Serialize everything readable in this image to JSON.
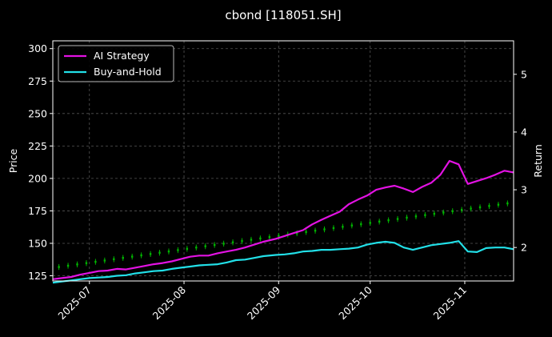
{
  "chart_data": {
    "type": "line",
    "title": "cbond [118051.SH]",
    "ylabel": "Price",
    "y2label": "Return",
    "ylim": [
      121,
      306
    ],
    "y2lim": [
      1.42,
      5.58
    ],
    "yticks": [
      125,
      150,
      175,
      200,
      225,
      250,
      275,
      300
    ],
    "y2ticks": [
      2,
      3,
      4,
      5
    ],
    "xlim": [
      "2025-06-19",
      "2025-11-17"
    ],
    "xticks": [
      {
        "date": "2025-07-01",
        "label": "2025-07"
      },
      {
        "date": "2025-08-01",
        "label": "2025-08"
      },
      {
        "date": "2025-09-01",
        "label": "2025-09"
      },
      {
        "date": "2025-10-01",
        "label": "2025-10"
      },
      {
        "date": "2025-11-01",
        "label": "2025-11"
      }
    ],
    "grid": true,
    "legend": "top-left",
    "colors": {
      "ai": "#e312e3",
      "bh": "#22e0e8",
      "up": "#00b400",
      "down": "#e01010",
      "grid": "#555555"
    },
    "series": [
      {
        "name": "AI Strategy",
        "axis": "y2",
        "points": [
          [
            "2025-06-19",
            1.45
          ],
          [
            "2025-06-22",
            1.47
          ],
          [
            "2025-06-25",
            1.49
          ],
          [
            "2025-06-28",
            1.53
          ],
          [
            "2025-07-01",
            1.56
          ],
          [
            "2025-07-04",
            1.59
          ],
          [
            "2025-07-07",
            1.6
          ],
          [
            "2025-07-10",
            1.63
          ],
          [
            "2025-07-13",
            1.62
          ],
          [
            "2025-07-16",
            1.65
          ],
          [
            "2025-07-19",
            1.68
          ],
          [
            "2025-07-22",
            1.71
          ],
          [
            "2025-07-25",
            1.73
          ],
          [
            "2025-07-28",
            1.76
          ],
          [
            "2025-07-31",
            1.8
          ],
          [
            "2025-08-03",
            1.84
          ],
          [
            "2025-08-06",
            1.86
          ],
          [
            "2025-08-09",
            1.86
          ],
          [
            "2025-08-12",
            1.9
          ],
          [
            "2025-08-15",
            1.93
          ],
          [
            "2025-08-18",
            1.96
          ],
          [
            "2025-08-21",
            2.0
          ],
          [
            "2025-08-24",
            2.05
          ],
          [
            "2025-08-27",
            2.1
          ],
          [
            "2025-08-31",
            2.15
          ],
          [
            "2025-09-03",
            2.2
          ],
          [
            "2025-09-06",
            2.25
          ],
          [
            "2025-09-09",
            2.3
          ],
          [
            "2025-09-12",
            2.4
          ],
          [
            "2025-09-15",
            2.48
          ],
          [
            "2025-09-18",
            2.55
          ],
          [
            "2025-09-21",
            2.62
          ],
          [
            "2025-09-24",
            2.75
          ],
          [
            "2025-09-27",
            2.83
          ],
          [
            "2025-09-30",
            2.9
          ],
          [
            "2025-10-03",
            3.0
          ],
          [
            "2025-10-06",
            3.04
          ],
          [
            "2025-10-09",
            3.07
          ],
          [
            "2025-10-12",
            3.02
          ],
          [
            "2025-10-15",
            2.96
          ],
          [
            "2025-10-18",
            3.05
          ],
          [
            "2025-10-21",
            3.12
          ],
          [
            "2025-10-24",
            3.26
          ],
          [
            "2025-10-27",
            3.5
          ],
          [
            "2025-10-30",
            3.44
          ],
          [
            "2025-11-02",
            3.1
          ],
          [
            "2025-11-05",
            3.15
          ],
          [
            "2025-11-08",
            3.2
          ],
          [
            "2025-11-11",
            3.26
          ],
          [
            "2025-11-14",
            3.33
          ],
          [
            "2025-11-17",
            3.3
          ]
        ]
      },
      {
        "name": "Buy-and-Hold",
        "axis": "y2",
        "points": [
          [
            "2025-06-19",
            1.39
          ],
          [
            "2025-06-22",
            1.41
          ],
          [
            "2025-06-25",
            1.43
          ],
          [
            "2025-06-28",
            1.45
          ],
          [
            "2025-07-01",
            1.47
          ],
          [
            "2025-07-04",
            1.48
          ],
          [
            "2025-07-07",
            1.49
          ],
          [
            "2025-07-10",
            1.51
          ],
          [
            "2025-07-13",
            1.52
          ],
          [
            "2025-07-16",
            1.55
          ],
          [
            "2025-07-19",
            1.57
          ],
          [
            "2025-07-22",
            1.59
          ],
          [
            "2025-07-25",
            1.6
          ],
          [
            "2025-07-28",
            1.63
          ],
          [
            "2025-07-31",
            1.65
          ],
          [
            "2025-08-03",
            1.67
          ],
          [
            "2025-08-06",
            1.69
          ],
          [
            "2025-08-09",
            1.7
          ],
          [
            "2025-08-12",
            1.71
          ],
          [
            "2025-08-15",
            1.74
          ],
          [
            "2025-08-18",
            1.78
          ],
          [
            "2025-08-21",
            1.79
          ],
          [
            "2025-08-24",
            1.82
          ],
          [
            "2025-08-27",
            1.85
          ],
          [
            "2025-08-31",
            1.87
          ],
          [
            "2025-09-03",
            1.88
          ],
          [
            "2025-09-06",
            1.9
          ],
          [
            "2025-09-09",
            1.93
          ],
          [
            "2025-09-12",
            1.94
          ],
          [
            "2025-09-15",
            1.96
          ],
          [
            "2025-09-18",
            1.96
          ],
          [
            "2025-09-21",
            1.97
          ],
          [
            "2025-09-24",
            1.98
          ],
          [
            "2025-09-27",
            2.0
          ],
          [
            "2025-09-30",
            2.05
          ],
          [
            "2025-10-03",
            2.08
          ],
          [
            "2025-10-06",
            2.1
          ],
          [
            "2025-10-09",
            2.08
          ],
          [
            "2025-10-12",
            2.0
          ],
          [
            "2025-10-15",
            1.96
          ],
          [
            "2025-10-18",
            2.0
          ],
          [
            "2025-10-21",
            2.04
          ],
          [
            "2025-10-24",
            2.06
          ],
          [
            "2025-10-27",
            2.08
          ],
          [
            "2025-10-30",
            2.11
          ],
          [
            "2025-11-02",
            1.93
          ],
          [
            "2025-11-05",
            1.92
          ],
          [
            "2025-11-08",
            1.99
          ],
          [
            "2025-11-11",
            2.0
          ],
          [
            "2025-11-14",
            2.0
          ],
          [
            "2025-11-17",
            1.97
          ]
        ]
      }
    ],
    "candles": [
      [
        "2025-06-21",
        131,
        132.5,
        129.5,
        134
      ],
      [
        "2025-06-24",
        132,
        133.5,
        130.5,
        135
      ],
      [
        "2025-06-27",
        133,
        134.5,
        131.5,
        136
      ],
      [
        "2025-06-30",
        134,
        135.5,
        132.5,
        137
      ],
      [
        "2025-07-03",
        135,
        136.5,
        133.5,
        138
      ],
      [
        "2025-07-06",
        136,
        137.5,
        134.5,
        139
      ],
      [
        "2025-07-09",
        137,
        138.5,
        135.5,
        140
      ],
      [
        "2025-07-12",
        138,
        139.5,
        136.5,
        141
      ],
      [
        "2025-07-15",
        139,
        140.5,
        137.5,
        142
      ],
      [
        "2025-07-18",
        140,
        141.5,
        138.5,
        143
      ],
      [
        "2025-07-21",
        141,
        142.5,
        139.5,
        144
      ],
      [
        "2025-07-24",
        142,
        143.5,
        140.5,
        145
      ],
      [
        "2025-07-27",
        143,
        144.5,
        141.5,
        146
      ],
      [
        "2025-07-30",
        144,
        145.5,
        142.5,
        147
      ],
      [
        "2025-08-02",
        145,
        146.5,
        143.5,
        148
      ],
      [
        "2025-08-05",
        146,
        147.5,
        144.5,
        149
      ],
      [
        "2025-08-08",
        147,
        148.5,
        145.5,
        150
      ],
      [
        "2025-08-11",
        148,
        149.5,
        146.5,
        151
      ],
      [
        "2025-08-14",
        149,
        150.5,
        147.5,
        152
      ],
      [
        "2025-08-17",
        150,
        151.5,
        148.5,
        153
      ],
      [
        "2025-08-20",
        151,
        152.5,
        149.5,
        154
      ],
      [
        "2025-08-23",
        152,
        153.5,
        150.5,
        155
      ],
      [
        "2025-08-26",
        153,
        154.5,
        151.5,
        156
      ],
      [
        "2025-08-29",
        154,
        155.5,
        152.5,
        157
      ],
      [
        "2025-09-01",
        155,
        156.5,
        153.5,
        158
      ],
      [
        "2025-09-04",
        156,
        157.5,
        154.5,
        159
      ],
      [
        "2025-09-07",
        157,
        158.5,
        155.5,
        160
      ],
      [
        "2025-09-10",
        158,
        159.5,
        156.5,
        161
      ],
      [
        "2025-09-13",
        159,
        160.5,
        157.5,
        162
      ],
      [
        "2025-09-16",
        160,
        161.5,
        158.5,
        163
      ],
      [
        "2025-09-19",
        161,
        162.5,
        159.5,
        164
      ],
      [
        "2025-09-22",
        162,
        163.5,
        160.5,
        165
      ],
      [
        "2025-09-25",
        163,
        164.5,
        161.5,
        166
      ],
      [
        "2025-09-28",
        164,
        165.5,
        162.5,
        167
      ],
      [
        "2025-10-01",
        165,
        166.5,
        163.5,
        168
      ],
      [
        "2025-10-04",
        166,
        167.5,
        164.5,
        169
      ],
      [
        "2025-10-07",
        167,
        168.5,
        165.5,
        170
      ],
      [
        "2025-10-10",
        168,
        169.5,
        166.5,
        171
      ],
      [
        "2025-10-13",
        169,
        170.5,
        167.5,
        172
      ],
      [
        "2025-10-16",
        170,
        171.5,
        168.5,
        173
      ],
      [
        "2025-10-19",
        171,
        172.5,
        169.5,
        174
      ],
      [
        "2025-10-22",
        172,
        173.5,
        170.5,
        175
      ],
      [
        "2025-10-25",
        173,
        174.5,
        171.5,
        176
      ],
      [
        "2025-10-28",
        174,
        175.5,
        172.5,
        177
      ],
      [
        "2025-10-31",
        175,
        176.5,
        173.5,
        178
      ],
      [
        "2025-11-03",
        176,
        177.5,
        174.5,
        179
      ],
      [
        "2025-11-06",
        177,
        178.5,
        175.5,
        180
      ],
      [
        "2025-11-09",
        178,
        179.5,
        176.5,
        181
      ],
      [
        "2025-11-12",
        179,
        180.5,
        177.5,
        182
      ],
      [
        "2025-11-15",
        180,
        181.5,
        178.5,
        183
      ]
    ]
  }
}
